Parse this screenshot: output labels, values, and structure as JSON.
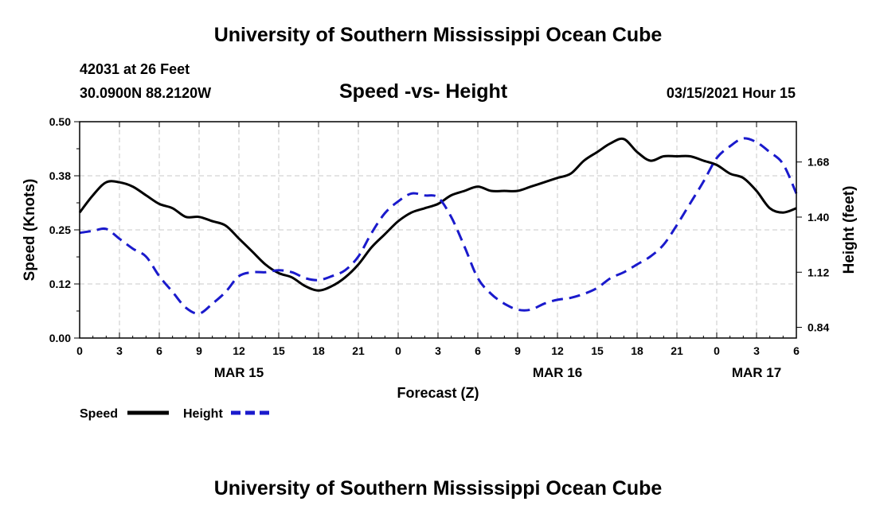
{
  "header": {
    "title": "University of Southern Mississippi Ocean Cube",
    "station": "42031 at 26 Feet",
    "location": "30.0900N 88.2120W",
    "datetime": "03/15/2021 Hour 15"
  },
  "footer": {
    "title": "University of Southern Mississippi Ocean Cube"
  },
  "colors": {
    "speed": "#000000",
    "height": "#1a1acc",
    "grid": "#c8c8c8"
  },
  "chart_data": {
    "type": "line",
    "title": "Speed -vs- Height",
    "xlabel": "Forecast (Z)",
    "ylabel": "Speed (Knots)",
    "y2label": "Height (feet)",
    "xlim": [
      0,
      54
    ],
    "ylim": [
      0,
      0.5
    ],
    "y2lim": [
      0.7856,
      1.8848
    ],
    "x_ticks": [
      0,
      3,
      6,
      9,
      12,
      15,
      18,
      21,
      24,
      27,
      30,
      33,
      36,
      39,
      42,
      45,
      48,
      51,
      54
    ],
    "x_tick_labels": [
      "0",
      "3",
      "6",
      "9",
      "12",
      "15",
      "18",
      "21",
      "0",
      "3",
      "6",
      "9",
      "12",
      "15",
      "18",
      "21",
      "0",
      "3",
      "6"
    ],
    "y_ticks": [
      0.0,
      0.125,
      0.25,
      0.375,
      0.5
    ],
    "y_tick_labels": [
      "0.00",
      "0.12",
      "0.25",
      "0.38",
      "0.50"
    ],
    "y2_ticks": [
      0.84,
      1.12,
      1.4,
      1.68
    ],
    "y2_tick_labels": [
      "0.84",
      "1.12",
      "1.40",
      "1.68"
    ],
    "date_labels": [
      {
        "x": 12,
        "label": "MAR 15"
      },
      {
        "x": 36,
        "label": "MAR 16"
      },
      {
        "x": 51,
        "label": "MAR 17"
      }
    ],
    "x": [
      0,
      1,
      2,
      3,
      4,
      5,
      6,
      7,
      8,
      9,
      10,
      11,
      12,
      13,
      14,
      15,
      16,
      17,
      18,
      19,
      20,
      21,
      22,
      23,
      24,
      25,
      26,
      27,
      28,
      29,
      30,
      31,
      32,
      33,
      34,
      35,
      36,
      37,
      38,
      39,
      40,
      41,
      42,
      43,
      44,
      45,
      46,
      47,
      48,
      49,
      50,
      51,
      52,
      53,
      54
    ],
    "series": [
      {
        "name": "Speed",
        "axis": "left",
        "style": "solid",
        "values": [
          0.29,
          0.33,
          0.36,
          0.36,
          0.35,
          0.33,
          0.31,
          0.3,
          0.28,
          0.28,
          0.27,
          0.26,
          0.23,
          0.2,
          0.17,
          0.15,
          0.14,
          0.12,
          0.11,
          0.12,
          0.14,
          0.17,
          0.21,
          0.24,
          0.27,
          0.29,
          0.3,
          0.31,
          0.33,
          0.34,
          0.35,
          0.34,
          0.34,
          0.34,
          0.35,
          0.36,
          0.37,
          0.38,
          0.41,
          0.43,
          0.45,
          0.46,
          0.43,
          0.41,
          0.42,
          0.42,
          0.42,
          0.41,
          0.4,
          0.38,
          0.37,
          0.34,
          0.3,
          0.29,
          0.3
        ]
      },
      {
        "name": "Height",
        "axis": "right",
        "style": "dashed",
        "values": [
          1.32,
          1.33,
          1.34,
          1.29,
          1.24,
          1.2,
          1.1,
          1.02,
          0.94,
          0.91,
          0.96,
          1.02,
          1.1,
          1.12,
          1.12,
          1.13,
          1.12,
          1.09,
          1.08,
          1.1,
          1.13,
          1.2,
          1.32,
          1.42,
          1.48,
          1.52,
          1.51,
          1.5,
          1.4,
          1.25,
          1.09,
          1.01,
          0.96,
          0.93,
          0.93,
          0.96,
          0.98,
          0.99,
          1.01,
          1.04,
          1.09,
          1.12,
          1.16,
          1.2,
          1.26,
          1.36,
          1.47,
          1.58,
          1.7,
          1.76,
          1.8,
          1.78,
          1.73,
          1.67,
          1.52
        ]
      }
    ],
    "legend": [
      {
        "name": "Speed",
        "style": "solid"
      },
      {
        "name": "Height",
        "style": "dashed"
      }
    ]
  }
}
